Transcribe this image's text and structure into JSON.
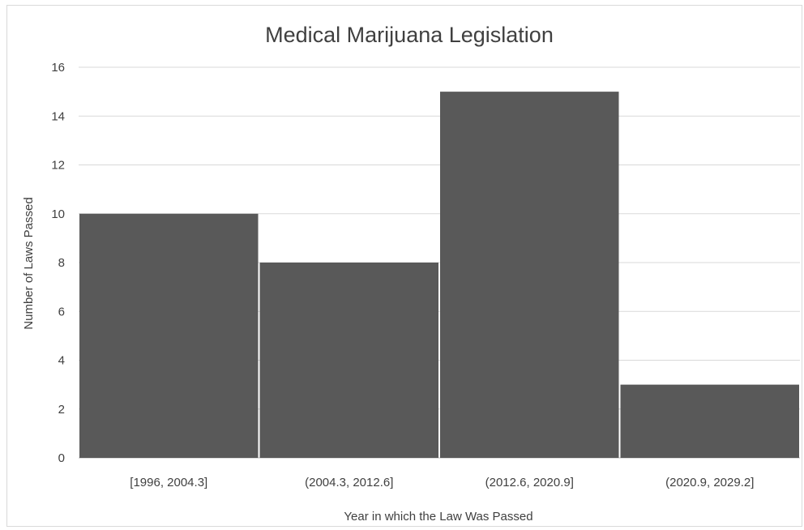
{
  "chart_data": {
    "type": "bar",
    "title": "Medical Marijuana Legislation",
    "xlabel": "Year in which the Law Was Passed",
    "ylabel": "Number of Laws Passed",
    "categories": [
      "[1996, 2004.3]",
      "(2004.3, 2012.6]",
      "(2012.6, 2020.9]",
      "(2020.9, 2029.2]"
    ],
    "values": [
      10,
      8,
      15,
      3
    ],
    "ylim": [
      0,
      16
    ],
    "yticks": [
      0,
      2,
      4,
      6,
      8,
      10,
      12,
      14,
      16
    ],
    "grid": true,
    "legend": "none",
    "colors": {
      "bar": "#595959",
      "grid": "#d9d9d9",
      "text": "#404040"
    }
  }
}
